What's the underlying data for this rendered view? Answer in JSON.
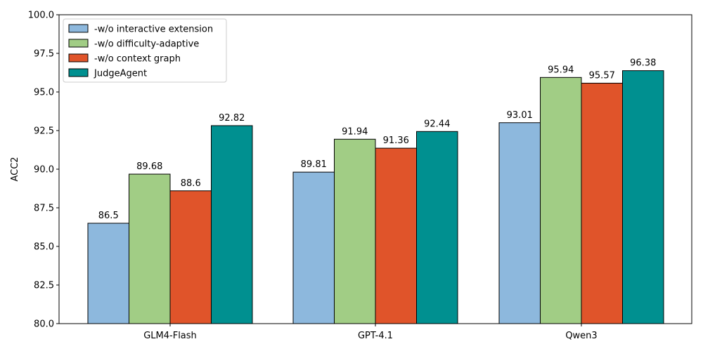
{
  "chart_data": {
    "type": "bar",
    "title": "",
    "xlabel": "",
    "ylabel": "ACC2",
    "ylim": [
      80.0,
      100.0
    ],
    "yticks": [
      "80.0",
      "82.5",
      "85.0",
      "87.5",
      "90.0",
      "92.5",
      "95.0",
      "97.5",
      "100.0"
    ],
    "categories": [
      "GLM4-Flash",
      "GPT-4.1",
      "Qwen3"
    ],
    "legend_position": "top-left",
    "grid": false,
    "series": [
      {
        "name": "-w/o interactive extension",
        "color": "#8db8dd",
        "values": [
          86.5,
          89.81,
          93.01
        ],
        "labels": [
          "86.5",
          "89.81",
          "93.01"
        ]
      },
      {
        "name": "-w/o difficulty-adaptive",
        "color": "#a1cd85",
        "values": [
          89.68,
          91.94,
          95.94
        ],
        "labels": [
          "89.68",
          "91.94",
          "95.94"
        ]
      },
      {
        "name": "-w/o context graph",
        "color": "#e0542a",
        "values": [
          88.6,
          91.36,
          95.57
        ],
        "labels": [
          "88.6",
          "91.36",
          "95.57"
        ]
      },
      {
        "name": "JudgeAgent",
        "color": "#009090",
        "values": [
          92.82,
          92.44,
          96.38
        ],
        "labels": [
          "92.82",
          "92.44",
          "96.38"
        ]
      }
    ]
  }
}
